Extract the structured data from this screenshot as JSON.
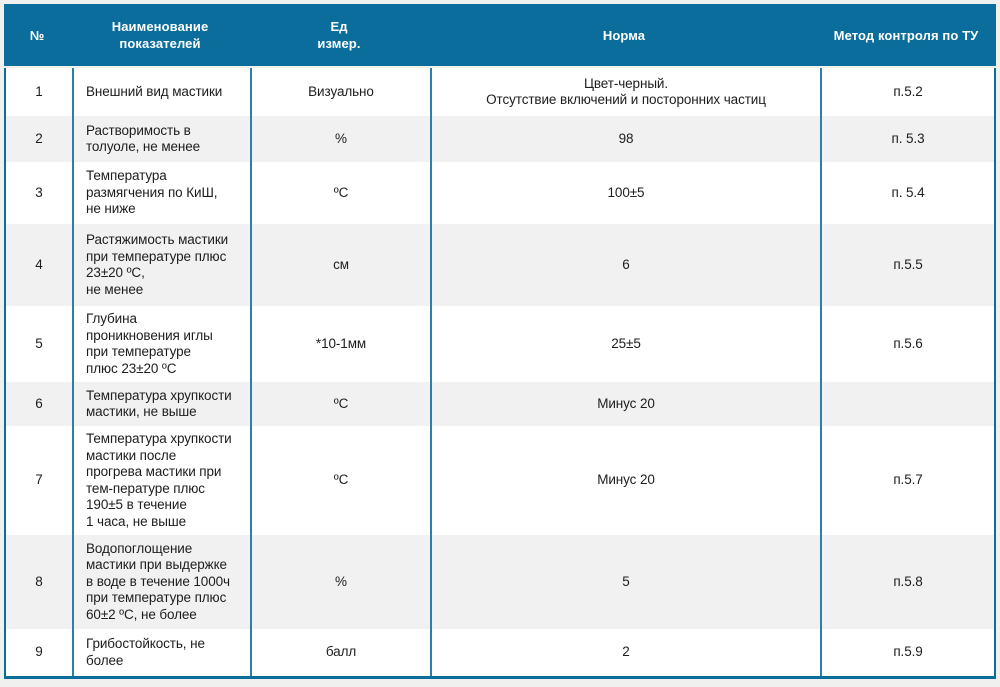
{
  "table": {
    "headers": {
      "num": "№",
      "name": "Наименование показателей",
      "unit": "Ед\nизмер.",
      "norm": "Норма",
      "method": "Метод контроля по ТУ"
    },
    "rows": [
      {
        "num": "1",
        "name": "Внешний вид мастики",
        "unit": "Визуально",
        "norm": "Цвет-черный.\nОтсутствие включений и посторонних частиц",
        "method": "п.5.2"
      },
      {
        "num": "2",
        "name": "Растворимость в\nтолуоле, не менее",
        "unit": "%",
        "norm": "98",
        "method": "п. 5.3"
      },
      {
        "num": "3",
        "name": "Температура\nразмягчения по КиШ,\nне ниже",
        "unit": "ºС",
        "norm": "100±5",
        "method": "п. 5.4"
      },
      {
        "num": "4",
        "name": "Растяжимость мастики\nпри температуре плюс\n23±20 ºС,\nне менее",
        "unit": "см",
        "norm": "6",
        "method": "п.5.5"
      },
      {
        "num": "5",
        "name": "Глубина\nпроникновения иглы\nпри температуре\nплюс 23±20 ºС",
        "unit": "*10-1мм",
        "norm": "25±5",
        "method": "п.5.6"
      },
      {
        "num": "6",
        "name": "Температура хрупкости\nмастики, не выше",
        "unit": "ºС",
        "norm": "Минус 20",
        "method": ""
      },
      {
        "num": "7",
        "name": "Температура хрупкости\nмастики после\nпрогрева мастики при\nтем-пературе плюс\n190±5 в течение\n1 часа, не выше",
        "unit": "ºС",
        "norm": "Минус 20",
        "method": "п.5.7"
      },
      {
        "num": "8",
        "name": "Водопоглощение\nмастики при выдержке\nв воде в течение 1000ч\nпри температуре плюс\n60±2 ºС, не более",
        "unit": "%",
        "norm": "5",
        "method": "п.5.8"
      },
      {
        "num": "9",
        "name": "Грибостойкость, не\nболее",
        "unit": "балл",
        "norm": "2",
        "method": "п.5.9"
      }
    ]
  },
  "colors": {
    "header_bg": "#0b6d9c",
    "inner_border": "#2b7fad",
    "row_alt_bg": "#f1f1f1",
    "row_bg": "#ffffff",
    "page_bg": "#f0f0ef",
    "header_text": "#ffffff",
    "body_text": "#1d1d1d"
  }
}
